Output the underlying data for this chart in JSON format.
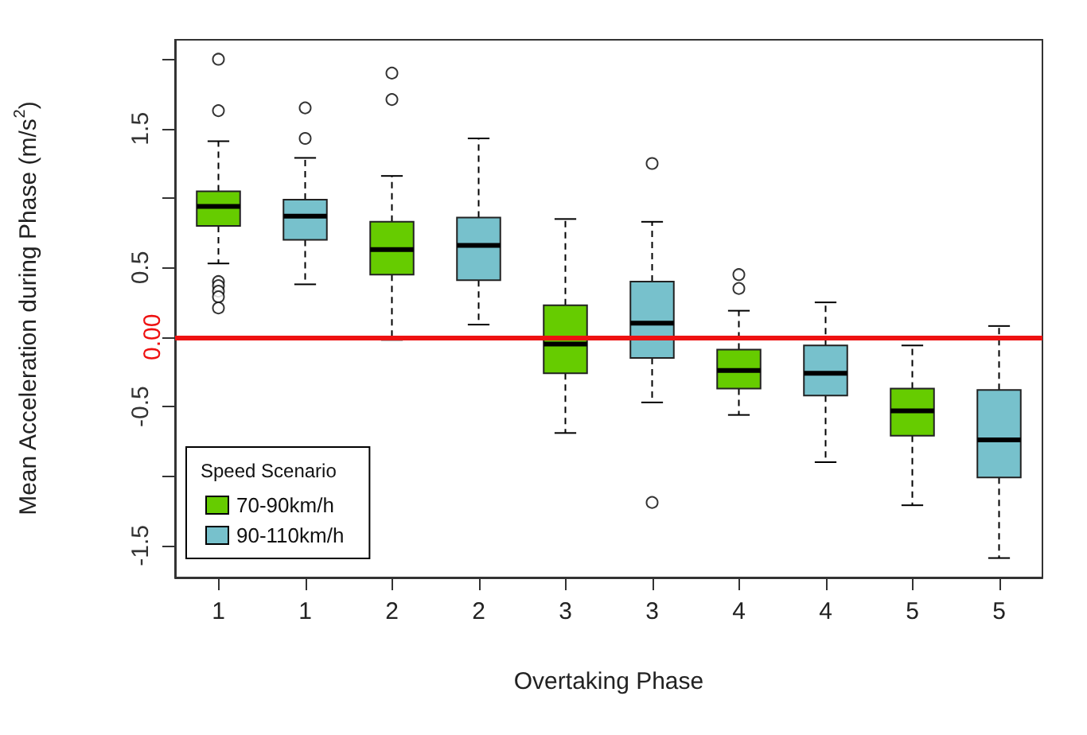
{
  "chart_data": {
    "type": "box",
    "xlabel": "Overtaking Phase",
    "ylabel": "Mean Acceleration during Phase (m/s$^{2}$)",
    "categories": [
      "1",
      "1",
      "2",
      "2",
      "3",
      "3",
      "4",
      "4",
      "5",
      "5"
    ],
    "ylim": [
      -1.73,
      2.14
    ],
    "yticks": [
      {
        "value": 2,
        "label": null
      },
      1.5,
      {
        "value": 1,
        "label": null
      },
      0.5,
      {
        "value": 0,
        "label": null
      },
      -0.5,
      {
        "value": -1,
        "label": null
      },
      -1.5
    ],
    "legend_title": "Speed Scenario",
    "legend": "bottom left",
    "ref_lines": [
      {
        "axis": "y",
        "value": 0,
        "label": "0.00",
        "color": "#ee1111"
      }
    ],
    "series": [
      {
        "name": "70-90km/h",
        "color": "#66cc00",
        "boxes": [
          {
            "low": 0.53,
            "q1": 0.8,
            "median": 0.94,
            "q3": 1.05,
            "high": 1.41,
            "outliers": [
              2.0,
              1.63,
              0.4,
              0.37,
              0.33,
              0.29,
              0.21
            ]
          },
          null,
          {
            "low": -0.02,
            "q1": 0.45,
            "median": 0.63,
            "q3": 0.83,
            "high": 1.16,
            "outliers": [
              1.9,
              1.71
            ]
          },
          null,
          {
            "low": -0.69,
            "q1": -0.26,
            "median": -0.05,
            "q3": 0.23,
            "high": 0.85
          },
          null,
          {
            "low": -0.56,
            "q1": -0.37,
            "median": -0.24,
            "q3": -0.09,
            "high": 0.19,
            "outliers": [
              0.45,
              0.35
            ]
          },
          null,
          {
            "low": -1.21,
            "q1": -0.71,
            "median": -0.53,
            "q3": -0.37,
            "high": -0.06
          },
          null
        ]
      },
      {
        "name": "90-110km/h",
        "color": "#77c1cc",
        "boxes": [
          null,
          {
            "low": 0.38,
            "q1": 0.7,
            "median": 0.87,
            "q3": 0.99,
            "high": 1.29,
            "outliers": [
              1.65,
              1.43
            ]
          },
          null,
          {
            "low": 0.09,
            "q1": 0.41,
            "median": 0.66,
            "q3": 0.86,
            "high": 1.43
          },
          null,
          {
            "low": -0.47,
            "q1": -0.15,
            "median": 0.1,
            "q3": 0.4,
            "high": 0.83,
            "outliers": [
              1.25,
              -1.19
            ]
          },
          null,
          {
            "low": -0.9,
            "q1": -0.42,
            "median": -0.26,
            "q3": -0.06,
            "high": 0.25
          },
          null,
          {
            "low": -1.59,
            "q1": -1.01,
            "median": -0.74,
            "q3": -0.38,
            "high": 0.08
          }
        ]
      }
    ]
  }
}
